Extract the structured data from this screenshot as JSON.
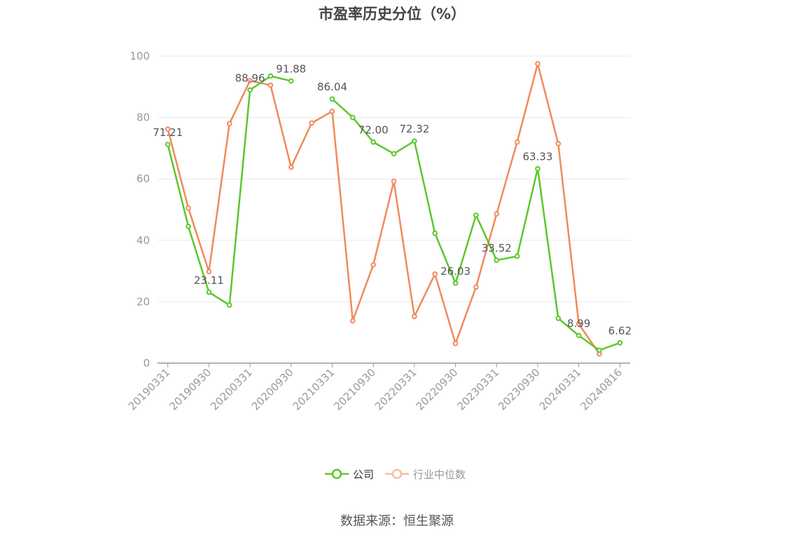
{
  "chart_data": {
    "type": "line",
    "title": "市盈率历史分位（%）",
    "source": "数据来源：恒生聚源",
    "categories": [
      "20190331",
      "20190630",
      "20190930",
      "20191231",
      "20200331",
      "20200630",
      "20200930",
      "20201231",
      "20210331",
      "20210630",
      "20210930",
      "20211231",
      "20220331",
      "20220630",
      "20220930",
      "20221231",
      "20230331",
      "20230630",
      "20230930",
      "20231231",
      "20240331",
      "20240630",
      "20240816"
    ],
    "x_tick_labels": [
      "20190331",
      "20190930",
      "20200331",
      "20200930",
      "20210331",
      "20210930",
      "20220331",
      "20220930",
      "20230331",
      "20230930",
      "20240331",
      "20240816"
    ],
    "ylim": [
      0,
      100
    ],
    "y_ticks": [
      0,
      20,
      40,
      60,
      80,
      100
    ],
    "grid": true,
    "legend_position": "bottom",
    "series": [
      {
        "name": "公司",
        "color": "#5cc72b",
        "values": [
          71.21,
          44.5,
          23.11,
          18.9,
          88.96,
          93.5,
          91.88,
          null,
          86.04,
          80.0,
          72.0,
          68.2,
          72.32,
          42.3,
          26.03,
          48.2,
          33.52,
          34.8,
          63.33,
          14.6,
          8.99,
          4.2,
          6.62
        ]
      },
      {
        "name": "行业中位数",
        "color": "#f08a5d",
        "values": [
          76.2,
          50.5,
          29.8,
          78.0,
          92.0,
          90.5,
          63.8,
          78.2,
          82.0,
          13.8,
          32.0,
          59.2,
          15.2,
          29.0,
          6.4,
          24.8,
          48.6,
          72.0,
          97.5,
          71.5,
          12.8,
          3.0,
          null
        ]
      }
    ],
    "data_labels": [
      {
        "series": 0,
        "index": 0,
        "text": "71.21"
      },
      {
        "series": 0,
        "index": 2,
        "text": "23.11"
      },
      {
        "series": 0,
        "index": 4,
        "text": "88.96"
      },
      {
        "series": 0,
        "index": 6,
        "text": "91.88"
      },
      {
        "series": 0,
        "index": 8,
        "text": "86.04"
      },
      {
        "series": 0,
        "index": 10,
        "text": "72.00"
      },
      {
        "series": 0,
        "index": 12,
        "text": "72.32"
      },
      {
        "series": 0,
        "index": 14,
        "text": "26.03"
      },
      {
        "series": 0,
        "index": 16,
        "text": "33.52"
      },
      {
        "series": 0,
        "index": 18,
        "text": "63.33"
      },
      {
        "series": 0,
        "index": 20,
        "text": "8.99"
      },
      {
        "series": 0,
        "index": 22,
        "text": "6.62"
      }
    ]
  }
}
